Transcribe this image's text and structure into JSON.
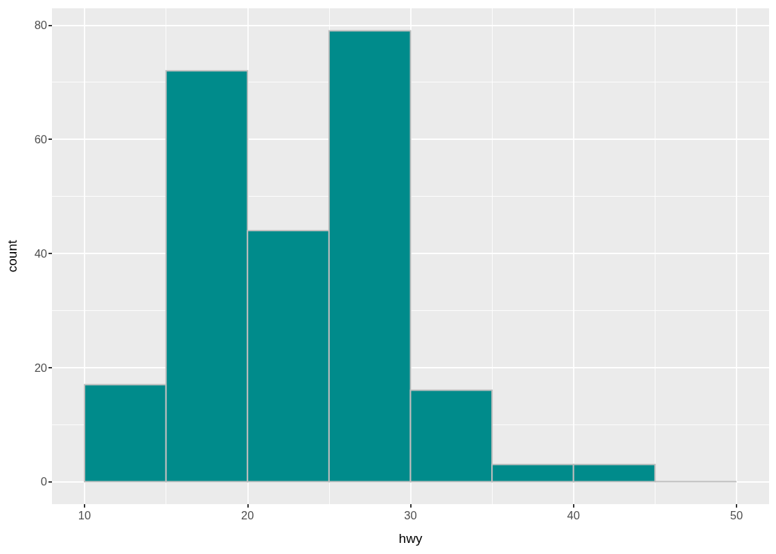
{
  "chart_data": {
    "type": "histogram",
    "xlabel": "hwy",
    "ylabel": "count",
    "bins": [
      10,
      15,
      20,
      25,
      30,
      35,
      40,
      45,
      50
    ],
    "values": [
      17,
      72,
      44,
      79,
      16,
      3,
      3,
      0
    ],
    "colors": [
      "#008b8b",
      "#008b8b",
      "#008b8b",
      "#008b8b",
      "#008b8b",
      "#008b8b",
      "#008b8b",
      "#bebebe"
    ],
    "xlim": [
      8,
      52
    ],
    "ylim": [
      -3.95,
      82.95
    ],
    "xticks": [
      10,
      {
        "value": 15,
        "label": null
      },
      20,
      {
        "value": 25,
        "label": null
      },
      30,
      {
        "value": 35,
        "label": null
      },
      40,
      {
        "value": 45,
        "label": null
      },
      50
    ],
    "yticks": [
      0,
      {
        "value": 10,
        "label": null
      },
      20,
      {
        "value": 30,
        "label": null
      },
      40,
      {
        "value": 50,
        "label": null
      },
      60,
      {
        "value": 70,
        "label": null
      },
      80
    ],
    "grid": true
  }
}
